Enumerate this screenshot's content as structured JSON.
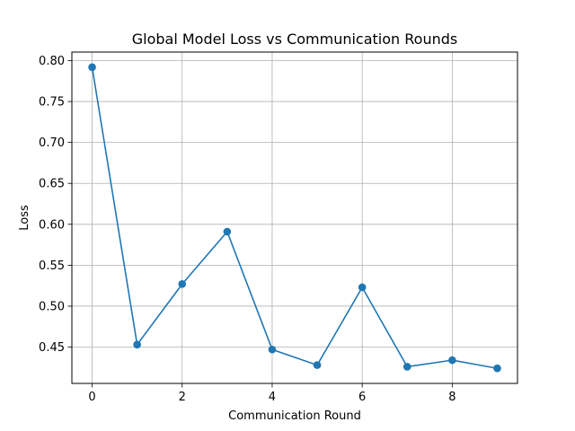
{
  "chart_data": {
    "type": "line",
    "title": "Global Model Loss vs Communication Rounds",
    "xlabel": "Communication Round",
    "ylabel": "Loss",
    "x": [
      0,
      1,
      2,
      3,
      4,
      5,
      6,
      7,
      8,
      9
    ],
    "series": [
      {
        "values": [
          0.792,
          0.453,
          0.527,
          0.591,
          0.447,
          0.428,
          0.523,
          0.426,
          0.434,
          0.424
        ],
        "color": "#1f77b4"
      }
    ],
    "xlim": [
      -0.45,
      9.45
    ],
    "ylim": [
      0.4056,
      0.8104
    ],
    "xticks": [
      0,
      2,
      4,
      6,
      8
    ],
    "xtick_labels": [
      "0",
      "2",
      "4",
      "6",
      "8"
    ],
    "yticks": [
      0.45,
      0.5,
      0.55,
      0.6,
      0.65,
      0.7,
      0.75,
      0.8
    ],
    "ytick_labels": [
      "0.45",
      "0.50",
      "0.55",
      "0.60",
      "0.65",
      "0.70",
      "0.75",
      "0.80"
    ],
    "grid": true,
    "marker": "circle"
  }
}
